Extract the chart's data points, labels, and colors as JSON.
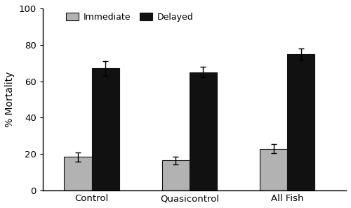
{
  "categories": [
    "Control",
    "Quasicontrol",
    "All Fish"
  ],
  "immediate_values": [
    18.5,
    16.5,
    23.0
  ],
  "delayed_values": [
    67.0,
    65.0,
    75.0
  ],
  "immediate_errors": [
    2.5,
    2.0,
    2.5
  ],
  "delayed_errors": [
    4.0,
    3.0,
    3.0
  ],
  "immediate_color": "#b2b2b2",
  "delayed_color": "#111111",
  "legend_labels": [
    "Immediate",
    "Delayed"
  ],
  "ylabel": "% Mortality",
  "ylim": [
    0,
    100
  ],
  "yticks": [
    0,
    20,
    40,
    60,
    80,
    100
  ],
  "bar_width": 0.28,
  "x_positions": [
    0.5,
    1.5,
    2.5
  ],
  "legend_fontsize": 9,
  "axis_fontsize": 10,
  "tick_fontsize": 9.5,
  "background_color": "#ffffff",
  "edge_color": "#111111"
}
